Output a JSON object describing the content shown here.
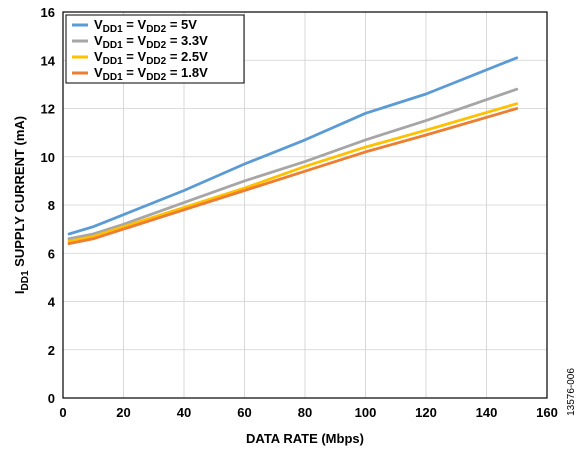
{
  "chart_data": {
    "type": "line",
    "xlabel": "DATA RATE (Mbps)",
    "ylabel": {
      "prefix": "I",
      "subscript": "DD1",
      "rest": " SUPPLY CURRENT (mA)"
    },
    "xlim": [
      0,
      160
    ],
    "ylim": [
      0,
      16
    ],
    "x_ticks": [
      0,
      20,
      40,
      60,
      80,
      100,
      120,
      140,
      160
    ],
    "y_ticks": [
      0,
      2,
      4,
      6,
      8,
      10,
      12,
      14,
      16
    ],
    "grid": true,
    "legend_position": "top-left",
    "series": [
      {
        "name": {
          "v1": "V",
          "s1": "DD1",
          "mid": " = V",
          "s2": "DD2",
          "end": " = 5V"
        },
        "color": "#5b9bd5",
        "x": [
          2,
          10,
          20,
          40,
          60,
          80,
          100,
          120,
          150
        ],
        "y": [
          6.8,
          7.1,
          7.6,
          8.6,
          9.7,
          10.7,
          11.8,
          12.6,
          14.1
        ]
      },
      {
        "name": {
          "v1": "V",
          "s1": "DD1",
          "mid": " = V",
          "s2": "DD2",
          "end": " = 3.3V"
        },
        "color": "#a6a6a6",
        "x": [
          2,
          10,
          20,
          40,
          60,
          80,
          100,
          120,
          150
        ],
        "y": [
          6.6,
          6.8,
          7.2,
          8.1,
          9.0,
          9.8,
          10.7,
          11.5,
          12.8
        ]
      },
      {
        "name": {
          "v1": "V",
          "s1": "DD1",
          "mid": " = V",
          "s2": "DD2",
          "end": " = 2.5V"
        },
        "color": "#ffc000",
        "x": [
          2,
          10,
          20,
          40,
          60,
          80,
          100,
          120,
          150
        ],
        "y": [
          6.5,
          6.7,
          7.1,
          7.9,
          8.7,
          9.6,
          10.4,
          11.1,
          12.2
        ]
      },
      {
        "name": {
          "v1": "V",
          "s1": "DD1",
          "mid": " = V",
          "s2": "DD2",
          "end": " = 1.8V"
        },
        "color": "#ed7d31",
        "x": [
          2,
          10,
          20,
          40,
          60,
          80,
          100,
          120,
          150
        ],
        "y": [
          6.4,
          6.6,
          7.0,
          7.8,
          8.6,
          9.4,
          10.2,
          10.9,
          12.0
        ]
      }
    ]
  },
  "figure_id": "13576-006"
}
